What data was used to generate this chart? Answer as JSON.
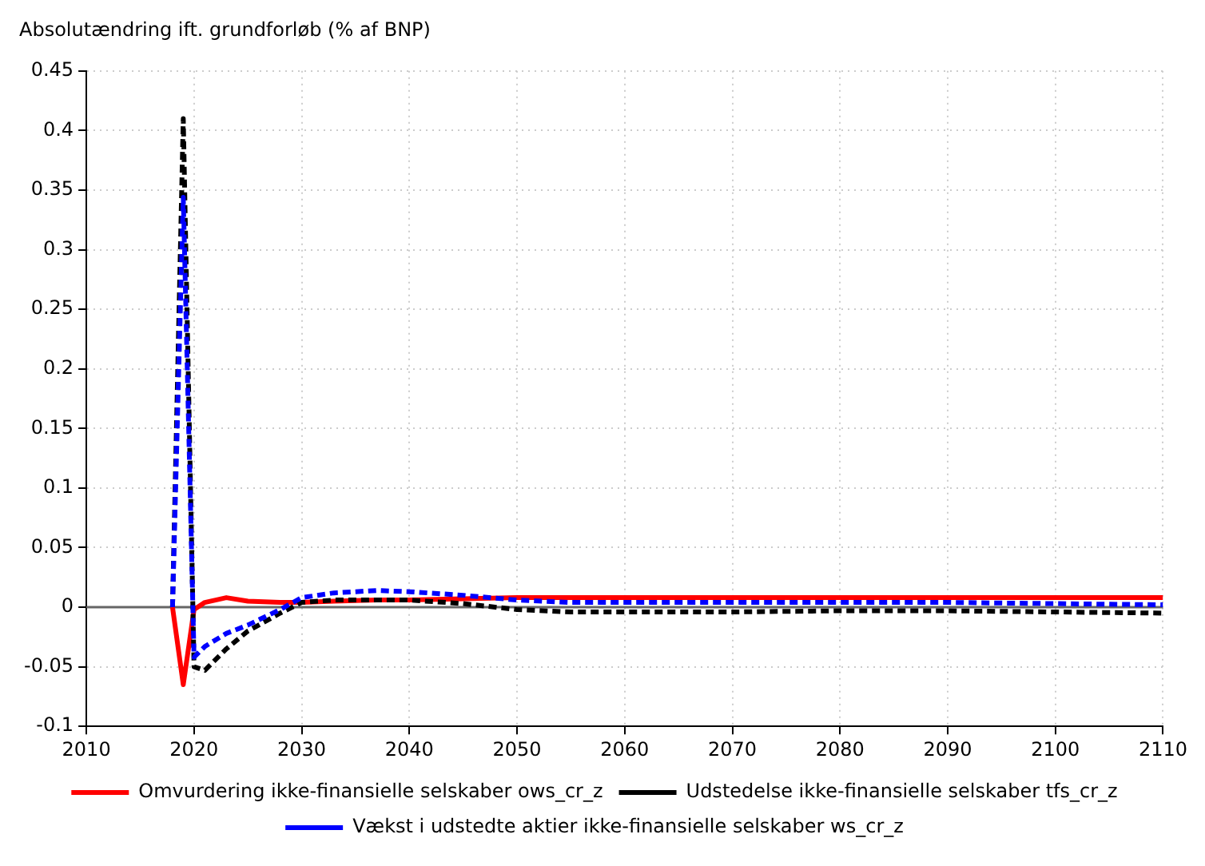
{
  "chart_data": {
    "type": "line",
    "ylabel": "Absolutændring ift. grundforløb (% af BNP)",
    "xlim": [
      2010,
      2110
    ],
    "xticks": [
      2010,
      2020,
      2030,
      2040,
      2050,
      2060,
      2070,
      2080,
      2090,
      2100,
      2110
    ],
    "ylim": [
      -0.1,
      0.45
    ],
    "yticks": [
      -0.1,
      -0.05,
      0,
      0.05,
      0.1,
      0.15,
      0.2,
      0.25,
      0.3,
      0.35,
      0.4,
      0.45
    ],
    "grid": true,
    "ref_lines": [
      {
        "axis": "y",
        "value": 0,
        "color": "#666666"
      }
    ],
    "legend": "bottom",
    "marker": "none",
    "x": [
      2018,
      2019,
      2020,
      2021,
      2023,
      2025,
      2028,
      2030,
      2033,
      2037,
      2040,
      2045,
      2050,
      2055,
      2060,
      2070,
      2080,
      2090,
      2100,
      2110
    ],
    "series": [
      {
        "name": "Omvurdering ikke-finansielle selskaber ows_cr_z",
        "color": "#ff0000",
        "line_style": "solid",
        "values": [
          0,
          -0.065,
          -0.002,
          0.004,
          0.008,
          0.005,
          0.004,
          0.004,
          0.005,
          0.006,
          0.006,
          0.007,
          0.008,
          0.008,
          0.008,
          0.008,
          0.008,
          0.008,
          0.008,
          0.008
        ]
      },
      {
        "name": "Udstedelse ikke-finansielle selskaber tfs_cr_z",
        "color": "#000000",
        "line_style": "dashed",
        "values": [
          0,
          0.41,
          -0.05,
          -0.053,
          -0.035,
          -0.02,
          -0.005,
          0.004,
          0.006,
          0.006,
          0.006,
          0.003,
          -0.002,
          -0.004,
          -0.004,
          -0.004,
          -0.003,
          -0.003,
          -0.004,
          -0.005
        ]
      },
      {
        "name": "Vækst i udstedte aktier ikke-finansielle selskaber ws_cr_z",
        "color": "#0000ff",
        "line_style": "dashed",
        "values": [
          0,
          0.344,
          -0.042,
          -0.033,
          -0.022,
          -0.015,
          -0.002,
          0.008,
          0.012,
          0.014,
          0.013,
          0.01,
          0.006,
          0.004,
          0.004,
          0.004,
          0.004,
          0.004,
          0.003,
          0.002
        ]
      }
    ]
  }
}
